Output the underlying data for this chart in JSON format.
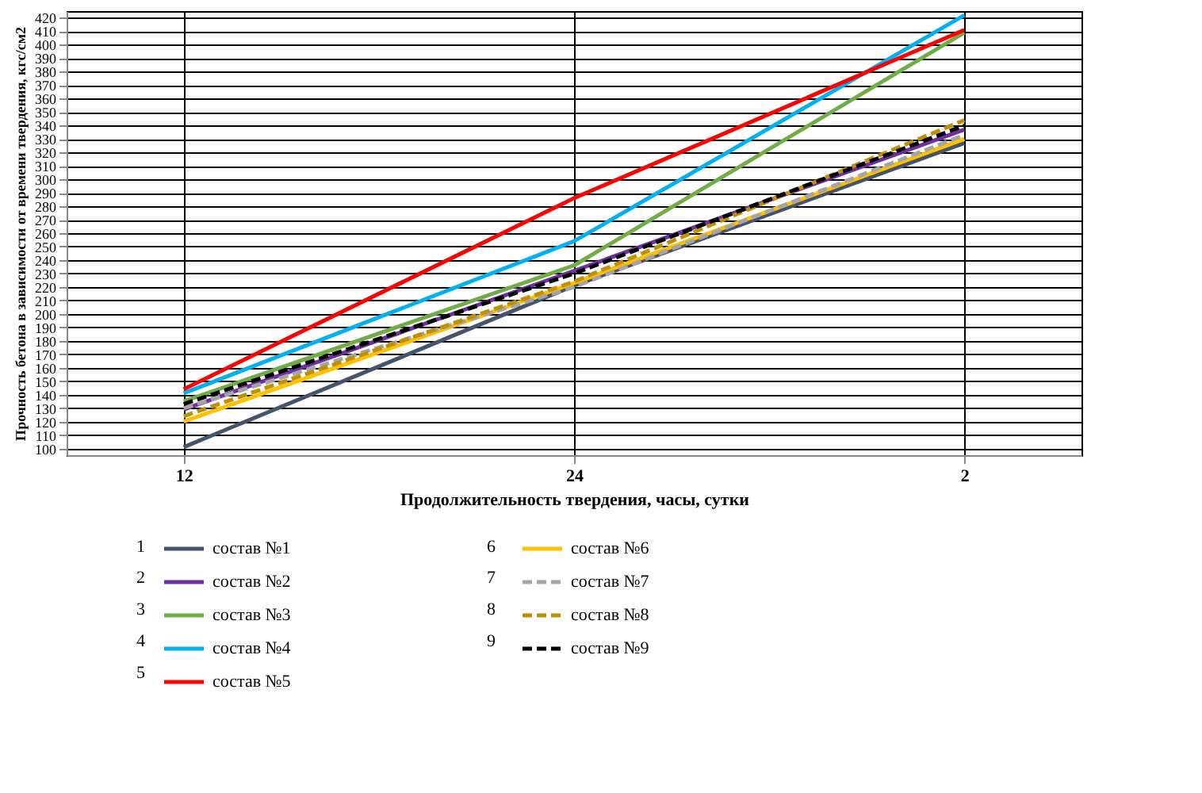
{
  "chart_data": {
    "type": "line",
    "xlabel": "Продолжительность твердения, часы, сутки",
    "ylabel": "Прочность бетона в зависимости от времени твердения, кгс/см2",
    "categories": [
      "12",
      "24",
      "2"
    ],
    "ylim": [
      95,
      425
    ],
    "yticks": [
      100,
      110,
      120,
      130,
      140,
      150,
      160,
      170,
      180,
      190,
      200,
      210,
      220,
      230,
      240,
      250,
      260,
      270,
      280,
      290,
      300,
      310,
      320,
      330,
      340,
      350,
      360,
      370,
      380,
      390,
      400,
      410,
      420
    ],
    "grid": true,
    "legend": "bottom",
    "annotations": [
      "1",
      "2",
      "3",
      "4",
      "5",
      "6",
      "7",
      "8",
      "9"
    ],
    "series": [
      {
        "name": "состав №1",
        "color": "#44546a",
        "values": [
          101,
          221,
          327
        ]
      },
      {
        "name": "состав №2",
        "color": "#7030a0",
        "values": [
          129,
          232,
          337
        ]
      },
      {
        "name": "состав №3",
        "color": "#70ad47",
        "values": [
          135,
          236,
          409
        ]
      },
      {
        "name": "состав №4",
        "color": "#00b0f0",
        "values": [
          141,
          254,
          422
        ]
      },
      {
        "name": "состав №5",
        "color": "#ff0000",
        "values": [
          144,
          286,
          411
        ]
      },
      {
        "name": "состав №6",
        "color": "#ffc000",
        "values": [
          120,
          223,
          330
        ]
      },
      {
        "name": "состав №7",
        "color": "#a5a5a5",
        "values": [
          130,
          220,
          333
        ],
        "line_style": "dashed"
      },
      {
        "name": "состав №8",
        "color": "#bf9000",
        "values": [
          124,
          224,
          344
        ],
        "line_style": "dashed"
      },
      {
        "name": "состав №9",
        "color": "#000000",
        "values": [
          133,
          230,
          340
        ],
        "line_style": "dashed"
      }
    ]
  }
}
